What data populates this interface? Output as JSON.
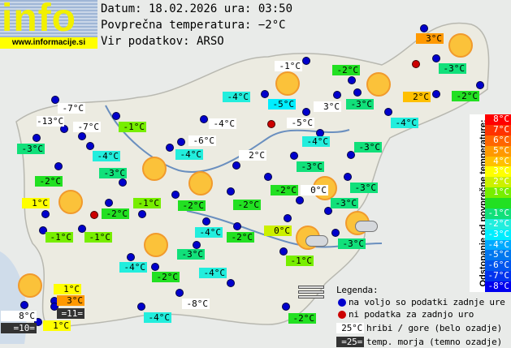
{
  "logo": {
    "word": "info",
    "url": "www.informacije.si"
  },
  "header": {
    "date_line": "Datum: 18.02.2026 ura: 03:50",
    "avg_line": "Povprečna temperatura: −2°C",
    "source_line": "Vir podatkov: ARSO"
  },
  "average_temperature": -2,
  "labels": [
    {
      "t": "-1°C",
      "k": "m"
    },
    {
      "t": "-4°C",
      "k": "v"
    },
    {
      "t": "-5°C",
      "k": "v"
    },
    {
      "t": "-2°C",
      "k": "v"
    },
    {
      "t": "3°C",
      "k": "m"
    },
    {
      "t": "-3°C",
      "k": "v"
    },
    {
      "t": "-5°C",
      "k": "m"
    },
    {
      "t": "-4°C",
      "k": "v"
    },
    {
      "t": "-4°C",
      "k": "v"
    },
    {
      "t": "3°C",
      "k": "v"
    },
    {
      "t": "-3°C",
      "k": "v"
    },
    {
      "t": "2°C",
      "k": "v"
    },
    {
      "t": "-2°C",
      "k": "v"
    },
    {
      "t": "-7°C",
      "k": "m"
    },
    {
      "t": "-13°C",
      "k": "m"
    },
    {
      "t": "-7°C",
      "k": "m"
    },
    {
      "t": "-1°C",
      "k": "v"
    },
    {
      "t": "-3°C",
      "k": "v"
    },
    {
      "t": "-4°C",
      "k": "v"
    },
    {
      "t": "-2°C",
      "k": "v"
    },
    {
      "t": "-3°C",
      "k": "v"
    },
    {
      "t": "1°C",
      "k": "v"
    },
    {
      "t": "-2°C",
      "k": "v"
    },
    {
      "t": "-1°C",
      "k": "v"
    },
    {
      "t": "-4°C",
      "k": "m"
    },
    {
      "t": "-6°C",
      "k": "m"
    },
    {
      "t": "-4°C",
      "k": "v"
    },
    {
      "t": "-2°C",
      "k": "v"
    },
    {
      "t": "2°C",
      "k": "m"
    },
    {
      "t": "-3°C",
      "k": "v"
    },
    {
      "t": "-3°C",
      "k": "v"
    },
    {
      "t": "-2°C",
      "k": "v"
    },
    {
      "t": "0°C",
      "k": "m"
    },
    {
      "t": "-3°C",
      "k": "v"
    },
    {
      "t": "-3°C",
      "k": "v"
    },
    {
      "t": "-2°C",
      "k": "v"
    },
    {
      "t": "-4°C",
      "k": "v"
    },
    {
      "t": "-2°C",
      "k": "v"
    },
    {
      "t": "0°C",
      "k": "v"
    },
    {
      "t": "-3°C",
      "k": "v"
    },
    {
      "t": "-1°C",
      "k": "v"
    },
    {
      "t": "-1°C",
      "k": "v"
    },
    {
      "t": "-4°C",
      "k": "v"
    },
    {
      "t": "-2°C",
      "k": "v"
    },
    {
      "t": "-3°C",
      "k": "v"
    },
    {
      "t": "-4°C",
      "k": "v"
    },
    {
      "t": "-1°C",
      "k": "v"
    },
    {
      "t": "-8°C",
      "k": "m"
    },
    {
      "t": "-4°C",
      "k": "v"
    },
    {
      "t": "-2°C",
      "k": "v"
    },
    {
      "t": "8°C",
      "k": "m"
    },
    {
      "t": "=10=",
      "k": "s"
    },
    {
      "t": "1°C",
      "k": "v"
    },
    {
      "t": "3°C",
      "k": "v"
    },
    {
      "t": "=11=",
      "k": "s"
    },
    {
      "t": "1°C",
      "k": "v"
    }
  ],
  "station_status": [
    "ok",
    "ok",
    "ok",
    "ok",
    "ok",
    "ok",
    "missing",
    "ok",
    "ok",
    "ok",
    "missing",
    "ok",
    "ok",
    "ok",
    "ok",
    "ok",
    "ok",
    "ok",
    "ok",
    "ok",
    "ok",
    "ok",
    "ok",
    "ok",
    "missing",
    "ok",
    "ok",
    "ok",
    "ok",
    "ok",
    "ok",
    "ok",
    "ok",
    "ok",
    "ok",
    "ok",
    "ok",
    "ok",
    "ok",
    "ok",
    "ok",
    "ok",
    "ok",
    "ok",
    "ok",
    "ok",
    "ok",
    "ok",
    "ok",
    "ok",
    "ok",
    "ok",
    "ok",
    "ok",
    "ok",
    "ok",
    "ok"
  ],
  "weather_icons": [
    "sunny",
    "sunny",
    "sunny",
    "sunny",
    "sunny",
    "sunny",
    "sunny",
    "sunny",
    "sunny",
    "partly-cloudy",
    "partly-cloudy",
    "fog"
  ],
  "scale": {
    "title": "Odstopanje od povprečne temperature:",
    "rows": [
      {
        "label": "8°C",
        "color": "#ff0000"
      },
      {
        "label": "7°C",
        "color": "#ff3300"
      },
      {
        "label": "6°C",
        "color": "#ff6600"
      },
      {
        "label": "5°C",
        "color": "#ff9900"
      },
      {
        "label": "4°C",
        "color": "#ffc000"
      },
      {
        "label": "3°C",
        "color": "#ffff00"
      },
      {
        "label": "2°C",
        "color": "#ccf000"
      },
      {
        "label": "1°C",
        "color": "#77ee00"
      },
      {
        "label": "",
        "color": "#22e022"
      },
      {
        "label": "-1°C",
        "color": "#11e07a"
      },
      {
        "label": "-2°C",
        "color": "#22eedd"
      },
      {
        "label": "-3°C",
        "color": "#00eeff"
      },
      {
        "label": "-4°C",
        "color": "#00aaff"
      },
      {
        "label": "-5°C",
        "color": "#0077ee"
      },
      {
        "label": "-6°C",
        "color": "#0055ee"
      },
      {
        "label": "-7°C",
        "color": "#0033ee"
      },
      {
        "label": "-8°C",
        "color": "#0000ee"
      }
    ]
  },
  "legend": {
    "title": "Legenda:",
    "available": "na voljo so podatki zadnje ure",
    "missing": "ni podatka za zadnjo uro",
    "mountain_sample": "25°C",
    "mountain": "hribi / gore (belo ozadje)",
    "sea_sample": "=25=",
    "sea": "temp. morja (temno ozadje)",
    "available_color": "#0000cc",
    "missing_color": "#cc0000"
  }
}
